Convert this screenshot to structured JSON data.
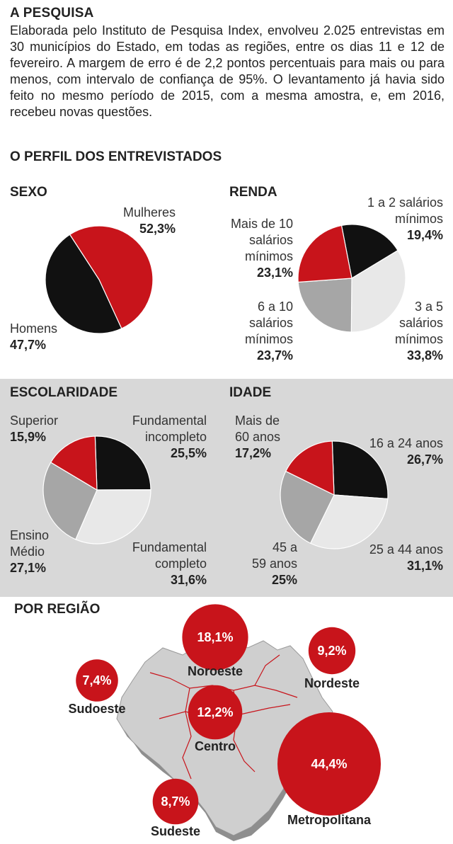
{
  "intro": {
    "title": "A PESQUISA",
    "text": "Elaborada pelo Instituto de Pesquisa Index, envolveu 2.025 entrevistas em 30 municípios do Estado, em todas as regiões, entre os dias 11 e 12 de fevereiro. A margem de erro é de 2,2 pontos percentuais para mais ou para menos, com intervalo de confiança de 95%. O levantamento já havia sido feito no mesmo período de 2015, com a mesma amostra, e, em 2016, recebeu novas questões."
  },
  "profile_title": "O PERFIL DOS ENTREVISTADOS",
  "colors": {
    "red": "#c8141b",
    "black": "#111111",
    "gray": "#a6a6a6",
    "light": "#e8e8e8",
    "shade": "#d8d8d8"
  },
  "chart_data": [
    {
      "type": "pie",
      "title": "SEXO",
      "slices": [
        {
          "name": "Mulheres",
          "label_lines": [
            "Mulheres"
          ],
          "value": 52.3,
          "display": "52,3%",
          "color": "#c8141b"
        },
        {
          "name": "Homens",
          "label_lines": [
            "Homens"
          ],
          "value": 47.7,
          "display": "47,7%",
          "color": "#111111"
        }
      ]
    },
    {
      "type": "pie",
      "title": "RENDA",
      "slices": [
        {
          "name": "1 a 2 salários mínimos",
          "label_lines": [
            "1 a 2 salários",
            "mínimos"
          ],
          "value": 19.4,
          "display": "19,4%",
          "color": "#111111"
        },
        {
          "name": "3 a 5 salários mínimos",
          "label_lines": [
            "3 a 5",
            "salários",
            "mínimos"
          ],
          "value": 33.8,
          "display": "33,8%",
          "color": "#e8e8e8"
        },
        {
          "name": "6 a 10 salários mínimos",
          "label_lines": [
            "6 a 10",
            "salários",
            "mínimos"
          ],
          "value": 23.7,
          "display": "23,7%",
          "color": "#a6a6a6"
        },
        {
          "name": "Mais de 10 salários mínimos",
          "label_lines": [
            "Mais de 10",
            "salários",
            "mínimos"
          ],
          "value": 23.1,
          "display": "23,1%",
          "color": "#c8141b"
        }
      ]
    },
    {
      "type": "pie",
      "title": "ESCOLARIDADE",
      "slices": [
        {
          "name": "Fundamental incompleto",
          "label_lines": [
            "Fundamental",
            "incompleto"
          ],
          "value": 25.5,
          "display": "25,5%",
          "color": "#111111"
        },
        {
          "name": "Fundamental completo",
          "label_lines": [
            "Fundamental",
            "completo"
          ],
          "value": 31.6,
          "display": "31,6%",
          "color": "#e8e8e8"
        },
        {
          "name": "Ensino Médio",
          "label_lines": [
            "Ensino",
            "Médio"
          ],
          "value": 27.1,
          "display": "27,1%",
          "color": "#a6a6a6"
        },
        {
          "name": "Superior",
          "label_lines": [
            "Superior"
          ],
          "value": 15.9,
          "display": "15,9%",
          "color": "#c8141b"
        }
      ]
    },
    {
      "type": "pie",
      "title": "IDADE",
      "slices": [
        {
          "name": "16 a 24 anos",
          "label_lines": [
            "16 a 24 anos"
          ],
          "value": 26.7,
          "display": "26,7%",
          "color": "#111111"
        },
        {
          "name": "25 a 44 anos",
          "label_lines": [
            "25 a 44 anos"
          ],
          "value": 31.1,
          "display": "31,1%",
          "color": "#e8e8e8"
        },
        {
          "name": "45 a 59 anos",
          "label_lines": [
            "45 a",
            "59 anos"
          ],
          "value": 25,
          "display": "25%",
          "color": "#a6a6a6"
        },
        {
          "name": "Mais de 60 anos",
          "label_lines": [
            "Mais de",
            "60 anos"
          ],
          "value": 17.2,
          "display": "17,2%",
          "color": "#c8141b"
        }
      ]
    },
    {
      "type": "bubble",
      "title": "POR REGIÃO",
      "regions": [
        {
          "name": "Noroeste",
          "value": 18.1,
          "display": "18,1%"
        },
        {
          "name": "Nordeste",
          "value": 9.2,
          "display": "9,2%"
        },
        {
          "name": "Sudoeste",
          "value": 7.4,
          "display": "7,4%"
        },
        {
          "name": "Centro",
          "value": 12.2,
          "display": "12,2%"
        },
        {
          "name": "Metropolitana",
          "value": 44.4,
          "display": "44,4%"
        },
        {
          "name": "Sudeste",
          "value": 8.7,
          "display": "8,7%"
        }
      ]
    }
  ]
}
